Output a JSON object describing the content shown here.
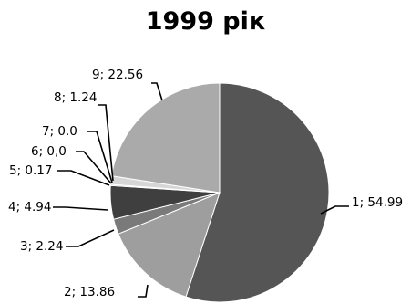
{
  "chart_data": {
    "type": "pie",
    "title": "1999 рік",
    "slices": [
      {
        "label": "1; 54.99",
        "value": 54.99,
        "color": "#555555"
      },
      {
        "label": "2; 13.86",
        "value": 13.86,
        "color": "#9e9e9e"
      },
      {
        "label": "3; 2.24",
        "value": 2.24,
        "color": "#7a7a7a"
      },
      {
        "label": "4; 4.94",
        "value": 4.94,
        "color": "#3f3f3f"
      },
      {
        "label": "5; 0.17",
        "value": 0.17,
        "color": "#8a8a8a"
      },
      {
        "label": "6; 0,0",
        "value": 0.0,
        "color": "#bdbdbd"
      },
      {
        "label": "7; 0.0",
        "value": 0.0,
        "color": "#bdbdbd"
      },
      {
        "label": "8; 1.24",
        "value": 1.24,
        "color": "#d6d6d6"
      },
      {
        "label": "9; 22.56",
        "value": 22.56,
        "color": "#aaaaaa"
      }
    ]
  }
}
